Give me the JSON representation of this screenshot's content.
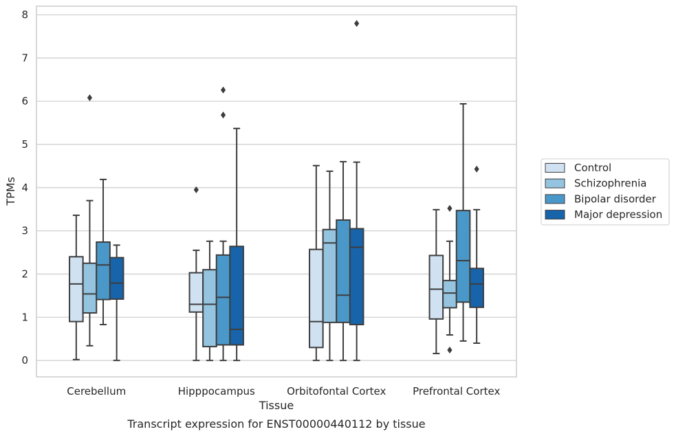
{
  "chart_data": {
    "type": "box",
    "caption": "Transcript expression for ENST00000440112 by tissue",
    "xlabel": "Tissue",
    "ylabel": "TPMs",
    "ylim": [
      -0.38,
      8.2
    ],
    "yticks": [
      0,
      1,
      2,
      3,
      4,
      5,
      6,
      7,
      8
    ],
    "grid": true,
    "legend_position": "right",
    "categories": [
      "Cerebellum",
      "Hipppocampus",
      "Orbitofontal Cortex",
      "Prefrontal Cortex"
    ],
    "series": [
      {
        "name": "Control",
        "color": "#d0e1f2",
        "boxes": [
          {
            "whislo": 0.02,
            "q1": 0.9,
            "med": 1.77,
            "q3": 2.4,
            "whishi": 3.36,
            "fliers": []
          },
          {
            "whislo": 0.0,
            "q1": 1.12,
            "med": 1.3,
            "q3": 2.03,
            "whishi": 2.55,
            "fliers": [
              3.95
            ]
          },
          {
            "whislo": 0.0,
            "q1": 0.3,
            "med": 0.9,
            "q3": 2.57,
            "whishi": 4.51,
            "fliers": []
          },
          {
            "whislo": 0.16,
            "q1": 0.96,
            "med": 1.65,
            "q3": 2.43,
            "whishi": 3.49,
            "fliers": []
          }
        ]
      },
      {
        "name": "Schizophrenia",
        "color": "#94c4df",
        "boxes": [
          {
            "whislo": 0.34,
            "q1": 1.1,
            "med": 1.54,
            "q3": 2.25,
            "whishi": 3.7,
            "fliers": [
              6.08
            ]
          },
          {
            "whislo": 0.0,
            "q1": 0.32,
            "med": 1.3,
            "q3": 2.1,
            "whishi": 2.76,
            "fliers": []
          },
          {
            "whislo": 0.0,
            "q1": 0.88,
            "med": 2.72,
            "q3": 3.03,
            "whishi": 4.38,
            "fliers": []
          },
          {
            "whislo": 0.59,
            "q1": 1.22,
            "med": 1.56,
            "q3": 1.85,
            "whishi": 2.76,
            "fliers": [
              0.24,
              3.52
            ]
          }
        ]
      },
      {
        "name": "Bipolar disorder",
        "color": "#4a98c9",
        "boxes": [
          {
            "whislo": 0.83,
            "q1": 1.41,
            "med": 2.21,
            "q3": 2.74,
            "whishi": 4.19,
            "fliers": []
          },
          {
            "whislo": 0.0,
            "q1": 0.36,
            "med": 1.46,
            "q3": 2.44,
            "whishi": 2.76,
            "fliers": [
              5.68,
              6.26
            ]
          },
          {
            "whislo": 0.0,
            "q1": 0.88,
            "med": 1.51,
            "q3": 3.25,
            "whishi": 4.6,
            "fliers": []
          },
          {
            "whislo": 0.45,
            "q1": 1.35,
            "med": 2.31,
            "q3": 3.47,
            "whishi": 5.94,
            "fliers": []
          }
        ]
      },
      {
        "name": "Major depression",
        "color": "#1764ab",
        "boxes": [
          {
            "whislo": 0.0,
            "q1": 1.42,
            "med": 1.79,
            "q3": 2.38,
            "whishi": 2.67,
            "fliers": []
          },
          {
            "whislo": 0.0,
            "q1": 0.36,
            "med": 0.72,
            "q3": 2.64,
            "whishi": 5.37,
            "fliers": []
          },
          {
            "whislo": 0.0,
            "q1": 0.83,
            "med": 2.62,
            "q3": 3.05,
            "whishi": 4.59,
            "fliers": [
              7.8
            ]
          },
          {
            "whislo": 0.4,
            "q1": 1.23,
            "med": 1.77,
            "q3": 2.13,
            "whishi": 3.49,
            "fliers": [
              4.43
            ]
          }
        ]
      }
    ]
  }
}
